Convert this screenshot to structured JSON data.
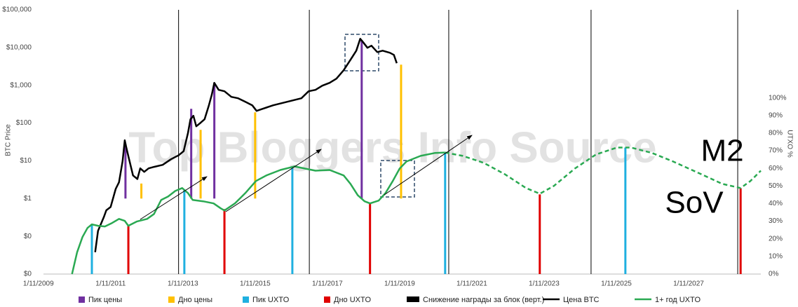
{
  "chart_data": {
    "type": "line",
    "y_label": "BTC Price",
    "y2_label": "UTXO %",
    "watermark": "Top Bloggers Info Source",
    "annotations": [
      "M2",
      "SoV"
    ],
    "log_y": true,
    "xlim": [
      2009.97,
      2029.83
    ],
    "xticks": [
      {
        "value": 2009.83,
        "label": "1/11/2009"
      },
      {
        "value": 2011.83,
        "label": "1/11/2011"
      },
      {
        "value": 2013.83,
        "label": "1/11/2013"
      },
      {
        "value": 2015.83,
        "label": "1/11/2015"
      },
      {
        "value": 2017.83,
        "label": "1/11/2017"
      },
      {
        "value": 2019.83,
        "label": "1/11/2019"
      },
      {
        "value": 2021.83,
        "label": "1/11/2021"
      },
      {
        "value": 2023.83,
        "label": "1/11/2023"
      },
      {
        "value": 2025.83,
        "label": "1/11/2025"
      },
      {
        "value": 2027.83,
        "label": "1/11/2027"
      }
    ],
    "ylim": [
      0.01,
      100000
    ],
    "yticks": [
      {
        "value": 0.01,
        "label": "$0"
      },
      {
        "value": 0.1,
        "label": "$0"
      },
      {
        "value": 1,
        "label": "$1"
      },
      {
        "value": 10,
        "label": "$10"
      },
      {
        "value": 100,
        "label": "$100"
      },
      {
        "value": 1000,
        "label": "$1,000"
      },
      {
        "value": 10000,
        "label": "$10,000"
      },
      {
        "value": 100000,
        "label": "$100,000"
      }
    ],
    "y2lim": [
      0,
      150
    ],
    "y2ticks": [
      {
        "value": 0,
        "label": "0%"
      },
      {
        "value": 10,
        "label": "10%"
      },
      {
        "value": 20,
        "label": "20%"
      },
      {
        "value": 30,
        "label": "30%"
      },
      {
        "value": 40,
        "label": "40%"
      },
      {
        "value": 50,
        "label": "50%"
      },
      {
        "value": 60,
        "label": "60%"
      },
      {
        "value": 70,
        "label": "70%"
      },
      {
        "value": 80,
        "label": "80%"
      },
      {
        "value": 90,
        "label": "90%"
      },
      {
        "value": 100,
        "label": "100%"
      }
    ],
    "events": [
      {
        "name": "Пик цены",
        "color": "#7030a0",
        "base": 1,
        "x": [
          2012.24,
          2014.06,
          2014.7,
          2018.78
        ],
        "values": [
          28,
          239,
          1160,
          15700
        ]
      },
      {
        "name": "Дно цены",
        "color": "#ffc000",
        "base": 1,
        "x": [
          2012.68,
          2014.32,
          2015.83,
          2019.87
        ],
        "values": [
          2.5,
          66,
          193,
          3530
        ]
      },
      {
        "name": "Пик UXTO",
        "color": "#1fb0e0",
        "axis": "y2",
        "base": 0,
        "x": [
          2011.31,
          2013.87,
          2016.86,
          2021.09,
          2026.08
        ],
        "values": [
          28.2,
          48.0,
          61.1,
          68.7,
          71.8
        ]
      },
      {
        "name": "Дно UXTO",
        "color": "#e00000",
        "axis": "y2",
        "base": 0,
        "x": [
          2012.32,
          2014.98,
          2019.01,
          2023.71,
          2029.27
        ],
        "values": [
          27.4,
          36.9,
          40.1,
          45.2,
          48.8
        ]
      }
    ],
    "halvings": {
      "name": "Снижение награды за блок (верт.)",
      "color": "#000000",
      "x": [
        2013.71,
        2017.33,
        2021.19,
        2025.13,
        2029.19
      ]
    },
    "series": [
      {
        "name": "Цена BTC",
        "color": "#000000",
        "x": [
          2011.4,
          2011.48,
          2011.64,
          2011.71,
          2011.83,
          2011.97,
          2012.06,
          2012.16,
          2012.22,
          2012.26,
          2012.33,
          2012.45,
          2012.57,
          2012.65,
          2012.76,
          2012.88,
          2013.03,
          2013.27,
          2013.5,
          2013.71,
          2013.85,
          2013.97,
          2014.04,
          2014.12,
          2014.2,
          2014.32,
          2014.43,
          2014.55,
          2014.63,
          2014.7,
          2014.82,
          2014.98,
          2015.17,
          2015.36,
          2015.56,
          2015.75,
          2015.87,
          2016.04,
          2016.33,
          2016.72,
          2017.11,
          2017.31,
          2017.5,
          2017.69,
          2017.89,
          2018.08,
          2018.28,
          2018.47,
          2018.63,
          2018.74,
          2018.82,
          2018.94,
          2019.05,
          2019.21,
          2019.36,
          2019.56,
          2019.67,
          2019.75
        ],
        "values": [
          0.038,
          0.14,
          0.32,
          0.49,
          0.6,
          1.8,
          2.7,
          9.7,
          35,
          23,
          12,
          4.1,
          3.3,
          6.3,
          5.1,
          6.3,
          6.9,
          7.8,
          11,
          14,
          18,
          54,
          126,
          156,
          82,
          102,
          126,
          296,
          562,
          1160,
          757,
          695,
          494,
          454,
          366,
          296,
          210,
          239,
          296,
          366,
          454,
          695,
          757,
          979,
          1160,
          1500,
          2506,
          4750,
          8280,
          17100,
          13800,
          9840,
          11200,
          7600,
          8280,
          7290,
          6410,
          3840
        ]
      },
      {
        "name": "1+ год UXTO",
        "color": "#2aa952",
        "axis": "y2",
        "x": [
          2010.76,
          2010.9,
          2011.05,
          2011.19,
          2011.31,
          2011.48,
          2011.67,
          2011.87,
          2012.06,
          2012.22,
          2012.32,
          2012.55,
          2012.84,
          2013.03,
          2013.23,
          2013.42,
          2013.62,
          2013.81,
          2013.97,
          2014.1,
          2014.39,
          2014.68,
          2014.88,
          2014.98,
          2015.27,
          2015.56,
          2015.85,
          2016.14,
          2016.53,
          2016.92,
          2017.21,
          2017.5,
          2017.89,
          2018.28,
          2018.47,
          2018.67,
          2018.86,
          2019.01,
          2019.25,
          2019.44,
          2019.64,
          2019.83,
          2020.02,
          2020.41,
          2020.8,
          2021.09
        ],
        "values": [
          0,
          12.3,
          21.0,
          26.2,
          28.2,
          27.4,
          27.0,
          29.0,
          31.3,
          30.2,
          27.4,
          29.8,
          31.3,
          34.1,
          42.1,
          44.0,
          47.2,
          48.8,
          46.0,
          42.1,
          41.3,
          40.1,
          37.3,
          36.1,
          40.1,
          46.0,
          52.8,
          56.0,
          59.1,
          61.1,
          59.9,
          58.7,
          59.1,
          56.0,
          51.2,
          44.8,
          41.3,
          40.1,
          41.7,
          46.0,
          52.8,
          59.9,
          63.9,
          67.1,
          68.7,
          69.0
        ]
      },
      {
        "color": "#2aa952",
        "axis": "y2",
        "dashed": true,
        "x": [
          2021.09,
          2021.58,
          2022.16,
          2022.74,
          2023.33,
          2023.71,
          2024.1,
          2024.68,
          2025.27,
          2025.85,
          2026.24,
          2026.82,
          2027.4,
          2028.18,
          2028.76,
          2029.27,
          2029.54,
          2029.83
        ],
        "values": [
          69.0,
          67.1,
          63.1,
          56.7,
          48.8,
          45.6,
          50.0,
          59.9,
          67.9,
          71.8,
          71.8,
          68.7,
          63.9,
          56.7,
          51.2,
          48.8,
          52.8,
          58.7
        ]
      }
    ]
  }
}
